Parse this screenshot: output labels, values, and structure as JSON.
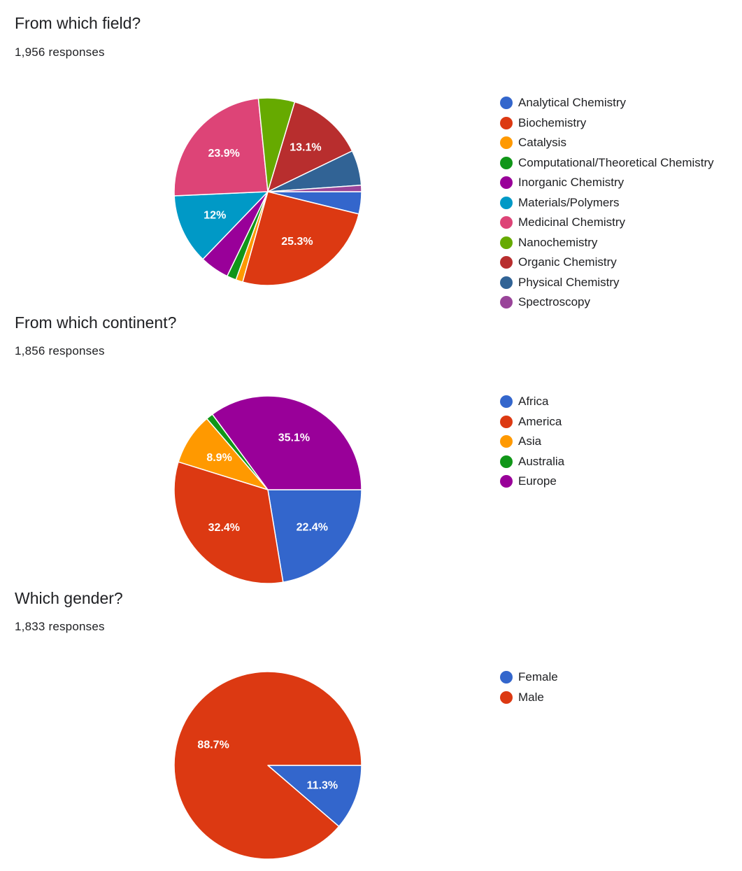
{
  "chart_data": [
    {
      "type": "pie",
      "title": "From which field?",
      "subtitle": "1,956 responses",
      "legend_position": "right",
      "start_angle": 0,
      "categories": [
        "Analytical Chemistry",
        "Biochemistry",
        "Catalysis",
        "Computational/Theoretical Chemistry",
        "Inorganic Chemistry",
        "Materials/Polymers",
        "Medicinal Chemistry",
        "Nanochemistry",
        "Organic Chemistry",
        "Physical Chemistry",
        "Spectroscopy"
      ],
      "values": [
        3.8,
        25.3,
        1.2,
        1.6,
        5.0,
        12.0,
        23.9,
        6.2,
        13.1,
        6.0,
        1.1
      ],
      "data_labels": [
        "",
        "25.3%",
        "",
        "",
        "",
        "12%",
        "23.9%",
        "",
        "13.1%",
        "",
        ""
      ],
      "colors": [
        "#3366cc",
        "#dc3912",
        "#ff9900",
        "#109618",
        "#990099",
        "#0099c6",
        "#dd4477",
        "#66aa00",
        "#b82e2e",
        "#316395",
        "#994499"
      ]
    },
    {
      "type": "pie",
      "title": "From which continent?",
      "subtitle": "1,856 responses",
      "legend_position": "right",
      "start_angle": 0,
      "categories": [
        "Africa",
        "America",
        "Asia",
        "Australia",
        "Europe"
      ],
      "values": [
        22.4,
        32.4,
        8.9,
        1.2,
        35.1
      ],
      "data_labels": [
        "22.4%",
        "32.4%",
        "8.9%",
        "",
        "35.1%"
      ],
      "colors": [
        "#3366cc",
        "#dc3912",
        "#ff9900",
        "#109618",
        "#990099"
      ]
    },
    {
      "type": "pie",
      "title": "Which gender?",
      "subtitle": "1,833 responses",
      "legend_position": "right",
      "start_angle": 0,
      "categories": [
        "Female",
        "Male"
      ],
      "values": [
        11.3,
        88.7
      ],
      "data_labels": [
        "11.3%",
        "88.7%"
      ],
      "colors": [
        "#3366cc",
        "#dc3912"
      ]
    }
  ]
}
